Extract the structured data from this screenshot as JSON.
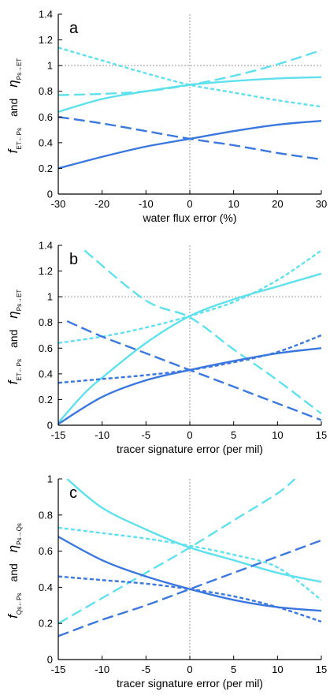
{
  "colors": {
    "dark_blue": "#3a78e0",
    "light_cyan": "#5fe0ee",
    "reference_line": "#9a9a9a",
    "axis": "#000000"
  },
  "chart_data": [
    {
      "type": "line",
      "panel_label": "a",
      "ylabel": {
        "f_symbol": "f",
        "f_sub": "ET←Ps",
        "and": "and",
        "eta_symbol": "η",
        "eta_sub": "Ps→ET"
      },
      "xlabel": "water flux error (%)",
      "xlim": [
        -30,
        30
      ],
      "ylim": [
        0,
        1.4
      ],
      "xticks": [
        "-30",
        "-20",
        "-10",
        "0",
        "10",
        "20",
        "30"
      ],
      "yticks": [
        "0",
        "0.2",
        "0.4",
        "0.6",
        "0.8",
        "1",
        "1.2",
        "1.4"
      ],
      "hline": 1,
      "vline": 0,
      "series": [
        {
          "color": "light_cyan",
          "style": "solid",
          "x": [
            -30,
            -20,
            -10,
            0,
            10,
            20,
            30
          ],
          "y": [
            0.64,
            0.74,
            0.8,
            0.85,
            0.88,
            0.9,
            0.91
          ]
        },
        {
          "color": "light_cyan",
          "style": "dashed",
          "x": [
            -30,
            -20,
            -10,
            0,
            10,
            20,
            30
          ],
          "y": [
            0.77,
            0.78,
            0.8,
            0.85,
            0.92,
            1.01,
            1.12
          ]
        },
        {
          "color": "light_cyan",
          "style": "dotted",
          "x": [
            -30,
            -20,
            -10,
            0,
            10,
            20,
            30
          ],
          "y": [
            1.14,
            1.04,
            0.94,
            0.85,
            0.79,
            0.73,
            0.68
          ]
        },
        {
          "color": "dark_blue",
          "style": "solid",
          "x": [
            -30,
            -20,
            -10,
            0,
            10,
            20,
            30
          ],
          "y": [
            0.2,
            0.29,
            0.37,
            0.43,
            0.49,
            0.54,
            0.57
          ]
        },
        {
          "color": "dark_blue",
          "style": "dashed",
          "x": [
            -30,
            -20,
            -10,
            0,
            10,
            20,
            30
          ],
          "y": [
            0.6,
            0.55,
            0.49,
            0.43,
            0.38,
            0.32,
            0.27
          ]
        }
      ]
    },
    {
      "type": "line",
      "panel_label": "b",
      "ylabel": {
        "f_symbol": "f",
        "f_sub": "ET←Ps",
        "and": "and",
        "eta_symbol": "η",
        "eta_sub": "Ps→ET"
      },
      "xlabel": "tracer signature error (per mil)",
      "xlim": [
        -15,
        15
      ],
      "ylim": [
        0,
        1.4
      ],
      "xticks": [
        "-15",
        "-10",
        "-5",
        "0",
        "5",
        "10",
        "15"
      ],
      "yticks": [
        "0",
        "0.2",
        "0.4",
        "0.6",
        "0.8",
        "1",
        "1.2",
        "1.4"
      ],
      "hline": 1,
      "vline": 0,
      "series": [
        {
          "color": "light_cyan",
          "style": "solid",
          "x": [
            -15,
            -12,
            -10,
            -5,
            0,
            5,
            10,
            15
          ],
          "y": [
            0.02,
            0.25,
            0.37,
            0.64,
            0.85,
            0.98,
            1.08,
            1.18
          ]
        },
        {
          "color": "light_cyan",
          "style": "dashed",
          "x": [
            -12,
            -5,
            0,
            5,
            10,
            15
          ],
          "y": [
            1.36,
            0.97,
            0.84,
            0.59,
            0.35,
            0.09
          ]
        },
        {
          "color": "light_cyan",
          "style": "dotted",
          "x": [
            -15,
            -10,
            -5,
            0,
            5,
            10,
            15
          ],
          "y": [
            0.64,
            0.69,
            0.76,
            0.85,
            0.96,
            1.13,
            1.36
          ]
        },
        {
          "color": "dark_blue",
          "style": "solid",
          "x": [
            -15,
            -10,
            -5,
            0,
            5,
            10,
            15
          ],
          "y": [
            0.01,
            0.22,
            0.35,
            0.43,
            0.5,
            0.56,
            0.6
          ]
        },
        {
          "color": "dark_blue",
          "style": "dashed",
          "x": [
            -14,
            -10,
            -5,
            0,
            5,
            10,
            15
          ],
          "y": [
            0.81,
            0.69,
            0.56,
            0.43,
            0.3,
            0.17,
            0.04
          ]
        },
        {
          "color": "dark_blue",
          "style": "dotted",
          "x": [
            -15,
            -10,
            -5,
            0,
            5,
            10,
            15
          ],
          "y": [
            0.33,
            0.36,
            0.39,
            0.43,
            0.49,
            0.57,
            0.7
          ]
        }
      ]
    },
    {
      "type": "line",
      "panel_label": "c",
      "ylabel": {
        "f_symbol": "f",
        "f_sub": "Qs←Ps",
        "and": "and",
        "eta_symbol": "η",
        "eta_sub": "Ps→Qs"
      },
      "xlabel": "tracer signature error (per mil)",
      "xlim": [
        -15,
        15
      ],
      "ylim": [
        0,
        1
      ],
      "xticks": [
        "-15",
        "-10",
        "-5",
        "0",
        "5",
        "10",
        "15"
      ],
      "yticks": [
        "0",
        "0.2",
        "0.4",
        "0.6",
        "0.8",
        "1"
      ],
      "vline": 0,
      "series": [
        {
          "color": "light_cyan",
          "style": "solid",
          "x": [
            -14,
            -10,
            -5,
            0,
            5,
            10,
            15
          ],
          "y": [
            1.0,
            0.84,
            0.72,
            0.62,
            0.55,
            0.48,
            0.43
          ]
        },
        {
          "color": "light_cyan",
          "style": "dashed",
          "x": [
            -15,
            -10,
            -5,
            0,
            5,
            10,
            12
          ],
          "y": [
            0.2,
            0.34,
            0.48,
            0.62,
            0.77,
            0.92,
            1.0
          ]
        },
        {
          "color": "light_cyan",
          "style": "dotted",
          "x": [
            -15,
            -10,
            -5,
            0,
            5,
            10,
            15
          ],
          "y": [
            0.73,
            0.7,
            0.67,
            0.63,
            0.58,
            0.51,
            0.33
          ]
        },
        {
          "color": "dark_blue",
          "style": "solid",
          "x": [
            -15,
            -10,
            -5,
            0,
            5,
            10,
            15
          ],
          "y": [
            0.68,
            0.55,
            0.46,
            0.39,
            0.33,
            0.29,
            0.27
          ]
        },
        {
          "color": "dark_blue",
          "style": "dashed",
          "x": [
            -15,
            -10,
            -5,
            0,
            5,
            10,
            15
          ],
          "y": [
            0.13,
            0.22,
            0.3,
            0.39,
            0.48,
            0.57,
            0.66
          ]
        },
        {
          "color": "dark_blue",
          "style": "dotted",
          "x": [
            -15,
            -10,
            -5,
            0,
            5,
            10,
            15
          ],
          "y": [
            0.46,
            0.44,
            0.42,
            0.39,
            0.35,
            0.29,
            0.21
          ]
        }
      ]
    }
  ]
}
